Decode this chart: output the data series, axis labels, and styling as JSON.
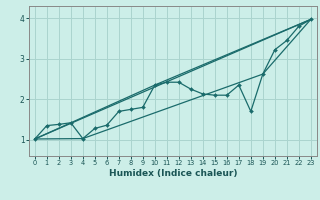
{
  "title": "",
  "xlabel": "Humidex (Indice chaleur)",
  "bg_color": "#cceee8",
  "grid_color": "#aad4ce",
  "line_color": "#1a6b6b",
  "xlim": [
    -0.5,
    23.5
  ],
  "ylim": [
    0.6,
    4.3
  ],
  "xticks": [
    0,
    1,
    2,
    3,
    4,
    5,
    6,
    7,
    8,
    9,
    10,
    11,
    12,
    13,
    14,
    15,
    16,
    17,
    18,
    19,
    20,
    21,
    22,
    23
  ],
  "yticks": [
    1,
    2,
    3,
    4
  ],
  "line1_x": [
    0,
    1,
    2,
    3,
    4,
    5,
    6,
    7,
    8,
    9,
    10,
    11,
    12,
    13,
    14,
    15,
    16,
    17,
    18,
    19,
    20,
    21,
    22,
    23
  ],
  "line1_y": [
    1.02,
    1.35,
    1.38,
    1.42,
    1.03,
    1.28,
    1.36,
    1.7,
    1.75,
    1.8,
    2.35,
    2.42,
    2.42,
    2.25,
    2.13,
    2.1,
    2.1,
    2.35,
    1.7,
    2.62,
    3.22,
    3.45,
    3.8,
    3.97
  ],
  "line2_x": [
    0,
    23
  ],
  "line2_y": [
    1.02,
    3.97
  ],
  "line3_x": [
    0,
    10,
    23
  ],
  "line3_y": [
    1.02,
    2.35,
    3.97
  ],
  "line4_x": [
    0,
    4,
    19,
    23
  ],
  "line4_y": [
    1.02,
    1.03,
    2.62,
    3.97
  ]
}
